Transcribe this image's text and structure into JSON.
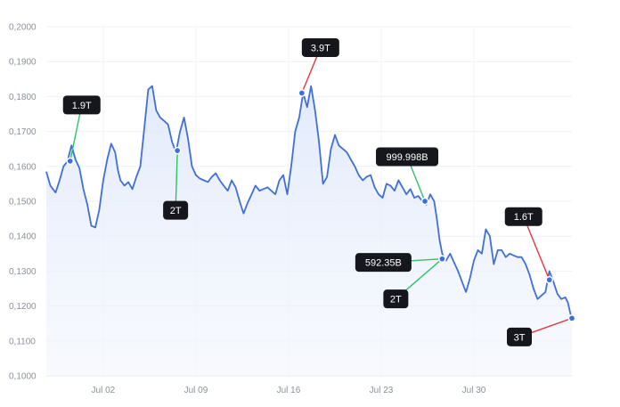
{
  "chart_data": {
    "type": "line",
    "title": "",
    "xlabel": "",
    "ylabel": "",
    "ylim": [
      0.1,
      0.2
    ],
    "grid": true,
    "legend": "none",
    "y_ticks": [
      "0,2000",
      "0,1900",
      "0,1800",
      "0,1700",
      "0,1600",
      "0,1500",
      "0,1400",
      "0,1300",
      "0,1200",
      "0,1100",
      "0,1000"
    ],
    "y_tick_values": [
      0.2,
      0.19,
      0.18,
      0.17,
      0.16,
      0.15,
      0.14,
      0.13,
      0.12,
      0.11,
      0.1
    ],
    "x_ticks": [
      "Jul 02",
      "Jul 09",
      "Jul 16",
      "Jul 23",
      "Jul 30"
    ],
    "x_tick_days": [
      2,
      9,
      16,
      23,
      30
    ],
    "xlim_days": [
      -2.3,
      37.4
    ],
    "series": [
      {
        "color": "#3f6fd8",
        "fill": "#eaf0fd",
        "points": [
          [
            -2.3,
            0.1585
          ],
          [
            -2.0,
            0.1545
          ],
          [
            -1.6,
            0.1525
          ],
          [
            -1.3,
            0.156
          ],
          [
            -1.0,
            0.16
          ],
          [
            -0.7,
            0.1615
          ],
          [
            -0.4,
            0.166
          ],
          [
            -0.1,
            0.162
          ],
          [
            0.2,
            0.1595
          ],
          [
            0.5,
            0.1535
          ],
          [
            0.8,
            0.149
          ],
          [
            1.1,
            0.143
          ],
          [
            1.4,
            0.1425
          ],
          [
            1.7,
            0.1475
          ],
          [
            2.0,
            0.156
          ],
          [
            2.3,
            0.162
          ],
          [
            2.6,
            0.1665
          ],
          [
            2.9,
            0.164
          ],
          [
            3.1,
            0.159
          ],
          [
            3.3,
            0.156
          ],
          [
            3.6,
            0.1545
          ],
          [
            3.9,
            0.1555
          ],
          [
            4.2,
            0.1535
          ],
          [
            4.5,
            0.157
          ],
          [
            4.8,
            0.16
          ],
          [
            5.1,
            0.171
          ],
          [
            5.4,
            0.182
          ],
          [
            5.7,
            0.183
          ],
          [
            6.0,
            0.176
          ],
          [
            6.3,
            0.174
          ],
          [
            6.6,
            0.173
          ],
          [
            6.9,
            0.172
          ],
          [
            7.2,
            0.167
          ],
          [
            7.5,
            0.164
          ],
          [
            7.8,
            0.17
          ],
          [
            8.1,
            0.174
          ],
          [
            8.4,
            0.168
          ],
          [
            8.7,
            0.16
          ],
          [
            9.0,
            0.1575
          ],
          [
            9.3,
            0.1565
          ],
          [
            9.6,
            0.156
          ],
          [
            9.9,
            0.1555
          ],
          [
            10.2,
            0.157
          ],
          [
            10.5,
            0.158
          ],
          [
            10.8,
            0.156
          ],
          [
            11.1,
            0.1545
          ],
          [
            11.4,
            0.153
          ],
          [
            11.7,
            0.156
          ],
          [
            12.0,
            0.154
          ],
          [
            12.3,
            0.15
          ],
          [
            12.6,
            0.1465
          ],
          [
            12.9,
            0.1495
          ],
          [
            13.2,
            0.152
          ],
          [
            13.5,
            0.1545
          ],
          [
            13.8,
            0.153
          ],
          [
            14.1,
            0.1535
          ],
          [
            14.4,
            0.154
          ],
          [
            14.7,
            0.153
          ],
          [
            15.0,
            0.152
          ],
          [
            15.3,
            0.156
          ],
          [
            15.6,
            0.1575
          ],
          [
            15.9,
            0.152
          ],
          [
            16.2,
            0.16
          ],
          [
            16.5,
            0.17
          ],
          [
            16.8,
            0.174
          ],
          [
            17.1,
            0.181
          ],
          [
            17.4,
            0.177
          ],
          [
            17.7,
            0.183
          ],
          [
            18.0,
            0.176
          ],
          [
            18.3,
            0.167
          ],
          [
            18.6,
            0.155
          ],
          [
            18.9,
            0.157
          ],
          [
            19.2,
            0.165
          ],
          [
            19.5,
            0.169
          ],
          [
            19.8,
            0.166
          ],
          [
            20.1,
            0.165
          ],
          [
            20.4,
            0.164
          ],
          [
            20.7,
            0.162
          ],
          [
            21.0,
            0.16
          ],
          [
            21.3,
            0.1575
          ],
          [
            21.6,
            0.156
          ],
          [
            21.9,
            0.157
          ],
          [
            22.2,
            0.1575
          ],
          [
            22.5,
            0.154
          ],
          [
            22.8,
            0.152
          ],
          [
            23.1,
            0.151
          ],
          [
            23.4,
            0.155
          ],
          [
            23.7,
            0.1545
          ],
          [
            24.0,
            0.153
          ],
          [
            24.3,
            0.156
          ],
          [
            24.6,
            0.154
          ],
          [
            24.9,
            0.152
          ],
          [
            25.2,
            0.1535
          ],
          [
            25.5,
            0.151
          ],
          [
            25.8,
            0.1515
          ],
          [
            26.1,
            0.15
          ],
          [
            26.4,
            0.149
          ],
          [
            26.7,
            0.152
          ],
          [
            27.0,
            0.15
          ],
          [
            27.2,
            0.145
          ],
          [
            27.4,
            0.139
          ],
          [
            27.6,
            0.135
          ],
          [
            27.9,
            0.133
          ],
          [
            28.2,
            0.135
          ],
          [
            28.5,
            0.1325
          ],
          [
            28.8,
            0.13
          ],
          [
            29.1,
            0.127
          ],
          [
            29.4,
            0.124
          ],
          [
            29.7,
            0.128
          ],
          [
            30.0,
            0.133
          ],
          [
            30.3,
            0.136
          ],
          [
            30.6,
            0.135
          ],
          [
            30.9,
            0.142
          ],
          [
            31.2,
            0.14
          ],
          [
            31.5,
            0.132
          ],
          [
            31.8,
            0.136
          ],
          [
            32.1,
            0.136
          ],
          [
            32.4,
            0.134
          ],
          [
            32.7,
            0.135
          ],
          [
            33.0,
            0.1345
          ],
          [
            33.3,
            0.134
          ],
          [
            33.6,
            0.134
          ],
          [
            33.9,
            0.132
          ],
          [
            34.2,
            0.129
          ],
          [
            34.5,
            0.125
          ],
          [
            34.8,
            0.122
          ],
          [
            35.1,
            0.123
          ],
          [
            35.4,
            0.124
          ],
          [
            35.7,
            0.13
          ],
          [
            36.0,
            0.127
          ],
          [
            36.3,
            0.1235
          ],
          [
            36.6,
            0.122
          ],
          [
            36.9,
            0.1225
          ],
          [
            37.1,
            0.121
          ],
          [
            37.4,
            0.116
          ]
        ]
      }
    ],
    "annotations": [
      {
        "label": "1.9T",
        "x": -0.5,
        "y": 0.1615,
        "color": "green"
      },
      {
        "label": "2T",
        "x": 7.6,
        "y": 0.1645,
        "color": "green"
      },
      {
        "label": "3.9T",
        "x": 17.0,
        "y": 0.181,
        "color": "red"
      },
      {
        "label": "999.998B",
        "x": 26.3,
        "y": 0.15,
        "color": "green"
      },
      {
        "label": "592.35B",
        "x": 27.6,
        "y": 0.1335,
        "color": "green"
      },
      {
        "label": "2T",
        "x": 27.6,
        "y": 0.1335,
        "color": "green"
      },
      {
        "label": "1.6T",
        "x": 35.7,
        "y": 0.1275,
        "color": "red"
      },
      {
        "label": "3T",
        "x": 37.4,
        "y": 0.1165,
        "color": "red"
      }
    ],
    "colors": {
      "up": "#2fc26a",
      "down": "#e0393e",
      "line": "#3f6fd8"
    }
  }
}
